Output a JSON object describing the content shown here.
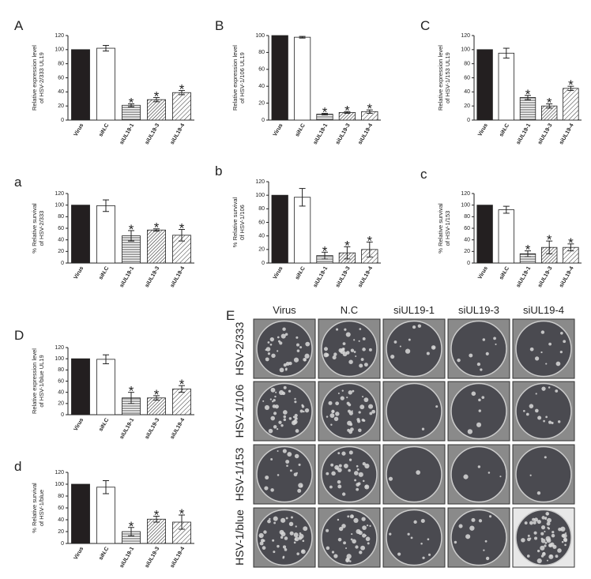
{
  "chart_data": [
    {
      "type": "bar",
      "panel": "A",
      "ylabel": [
        "Relative expression level",
        "of HSV-2/333 UL19"
      ],
      "categories": [
        "Virus",
        "siN.C",
        "siUL19-1",
        "siUL19-3",
        "siUL19-4"
      ],
      "values": [
        100,
        102,
        21,
        29,
        39
      ],
      "errors": [
        null,
        4,
        2,
        3,
        3
      ],
      "significance": [
        null,
        null,
        "*",
        "*",
        "*"
      ],
      "ylim": [
        0,
        120
      ],
      "yticks": [
        0,
        20,
        40,
        60,
        80,
        100,
        120
      ]
    },
    {
      "type": "bar",
      "panel": "B",
      "ylabel": [
        "Relative expression level",
        "of HSV-1/106 UL19"
      ],
      "categories": [
        "Virus",
        "siN.C",
        "siUL19-1",
        "siUL19-3",
        "siUL19-4"
      ],
      "values": [
        100,
        98,
        7,
        9,
        10
      ],
      "errors": [
        null,
        1,
        1,
        1,
        2
      ],
      "significance": [
        null,
        null,
        "*",
        "*",
        "*"
      ],
      "ylim": [
        0,
        100
      ],
      "yticks": [
        0,
        20,
        40,
        60,
        80,
        100
      ]
    },
    {
      "type": "bar",
      "panel": "C",
      "ylabel": [
        "Relative expression level",
        "of HSV-1/153 UL19"
      ],
      "categories": [
        "Virus",
        "siN.C",
        "siUL19-1",
        "siUL19-3",
        "siUL19-4"
      ],
      "values": [
        100,
        95,
        32,
        20,
        45
      ],
      "errors": [
        null,
        7,
        3,
        3,
        3
      ],
      "significance": [
        null,
        null,
        "*",
        "*",
        "*"
      ],
      "ylim": [
        0,
        120
      ],
      "yticks": [
        0,
        20,
        40,
        60,
        80,
        100,
        120
      ]
    },
    {
      "type": "bar",
      "panel": "a",
      "ylabel": [
        "% Relative survival",
        "of HSV-2/333"
      ],
      "categories": [
        "Virus",
        "siN.C",
        "siUL19-1",
        "siUL19-3",
        "siUL19-4"
      ],
      "values": [
        100,
        99,
        47,
        57,
        48
      ],
      "errors": [
        null,
        10,
        9,
        2,
        10
      ],
      "significance": [
        null,
        null,
        "*",
        "*",
        "*"
      ],
      "ylim": [
        0,
        120
      ],
      "yticks": [
        0,
        20,
        40,
        60,
        80,
        100,
        120
      ]
    },
    {
      "type": "bar",
      "panel": "b",
      "ylabel": [
        "% Relative survival",
        "0f HSV-1/106"
      ],
      "categories": [
        "Virus",
        "siN.C",
        "siUL19-1",
        "siUL19-3",
        "siUL19-4"
      ],
      "values": [
        100,
        97,
        11,
        15,
        20
      ],
      "errors": [
        null,
        13,
        5,
        9,
        11
      ],
      "significance": [
        null,
        null,
        "*",
        "*",
        "*"
      ],
      "ylim": [
        0,
        120
      ],
      "yticks": [
        0,
        20,
        40,
        60,
        80,
        100,
        120
      ]
    },
    {
      "type": "bar",
      "panel": "c",
      "ylabel": [
        "% Relative survival",
        "of HSV-1/153"
      ],
      "categories": [
        "Virus",
        "siN.C",
        "siUL19-1",
        "siUL19-3",
        "siUL19-4"
      ],
      "values": [
        100,
        92,
        16,
        27,
        27
      ],
      "errors": [
        null,
        6,
        5,
        11,
        6
      ],
      "significance": [
        null,
        null,
        "*",
        "*",
        "*"
      ],
      "ylim": [
        0,
        120
      ],
      "yticks": [
        0,
        20,
        40,
        60,
        80,
        100,
        120
      ]
    },
    {
      "type": "bar",
      "panel": "D",
      "ylabel": [
        "Relative expression level",
        "of HSV-1/blue UL19"
      ],
      "categories": [
        "Virus",
        "siN.C",
        "siUL19-1",
        "siUL19-3",
        "siUL19-4"
      ],
      "values": [
        100,
        99,
        30,
        30,
        46
      ],
      "errors": [
        null,
        8,
        10,
        4,
        6
      ],
      "significance": [
        null,
        null,
        "*",
        "*",
        "*"
      ],
      "ylim": [
        0,
        120
      ],
      "yticks": [
        0,
        20,
        40,
        60,
        80,
        100,
        120
      ]
    },
    {
      "type": "bar",
      "panel": "d",
      "ylabel": [
        "% Relative survival",
        "of HSV-1/blue"
      ],
      "categories": [
        "Virus",
        "siN.C",
        "siUL19-1",
        "siUL19-3",
        "siUL19-4"
      ],
      "values": [
        100,
        95,
        20,
        41,
        36
      ],
      "errors": [
        null,
        11,
        7,
        5,
        12
      ],
      "significance": [
        null,
        null,
        "*",
        "*",
        "*"
      ],
      "ylim": [
        0,
        120
      ],
      "yticks": [
        0,
        20,
        40,
        60,
        80,
        100,
        120
      ]
    }
  ],
  "photo_panel": {
    "label": "E",
    "columns": [
      "Virus",
      "N.C",
      "siUL19-1",
      "siUL19-3",
      "siUL19-4"
    ],
    "rows": [
      "HSV-2/333",
      "HSV-1/106",
      "HSV-1/153",
      "HSV-1/blue"
    ]
  }
}
